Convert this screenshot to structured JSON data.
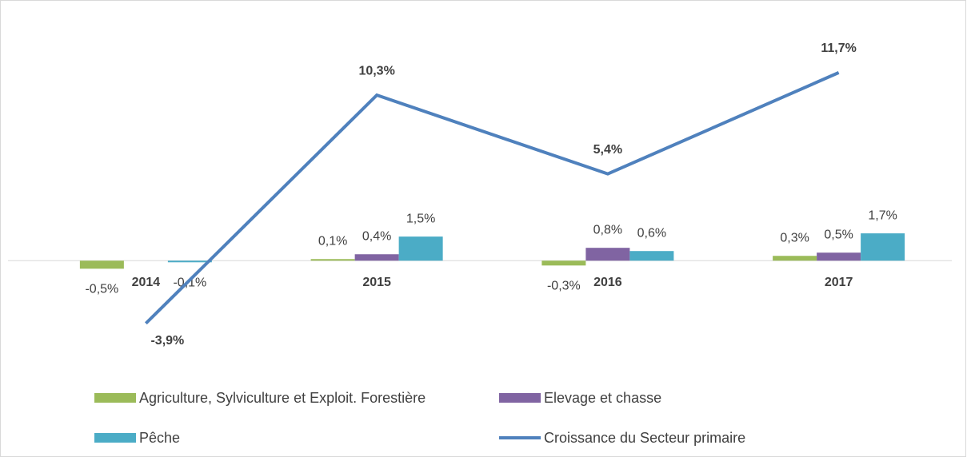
{
  "chart_data": {
    "type": "bar-line",
    "categories": [
      "2014",
      "2015",
      "2016",
      "2017"
    ],
    "series": [
      {
        "name": "Agriculture, Sylviculture et Exploit. Forestière",
        "type": "bar",
        "color": "#9bbb59",
        "values": [
          -0.5,
          0.1,
          -0.3,
          0.3
        ],
        "value_labels": [
          "-0,5%",
          "0,1%",
          "-0,3%",
          "0,3%"
        ]
      },
      {
        "name": "Elevage et chasse",
        "type": "bar",
        "color": "#8064a2",
        "values": [
          null,
          0.4,
          0.8,
          0.5
        ],
        "value_labels": [
          null,
          "0,4%",
          "0,8%",
          "0,5%"
        ]
      },
      {
        "name": "Pêche",
        "type": "bar",
        "color": "#4bacc6",
        "values": [
          -0.1,
          1.5,
          0.6,
          1.7
        ],
        "value_labels": [
          "-0,1%",
          "1,5%",
          "0,6%",
          "1,7%"
        ]
      },
      {
        "name": "Croissance du Secteur primaire",
        "type": "line",
        "color": "#4f81bd",
        "values": [
          -3.9,
          10.3,
          5.4,
          11.7
        ],
        "value_labels": [
          "-3,9%",
          "10,3%",
          "5,4%",
          "11,7%"
        ]
      }
    ],
    "ylim": [
      -6,
      14
    ]
  }
}
